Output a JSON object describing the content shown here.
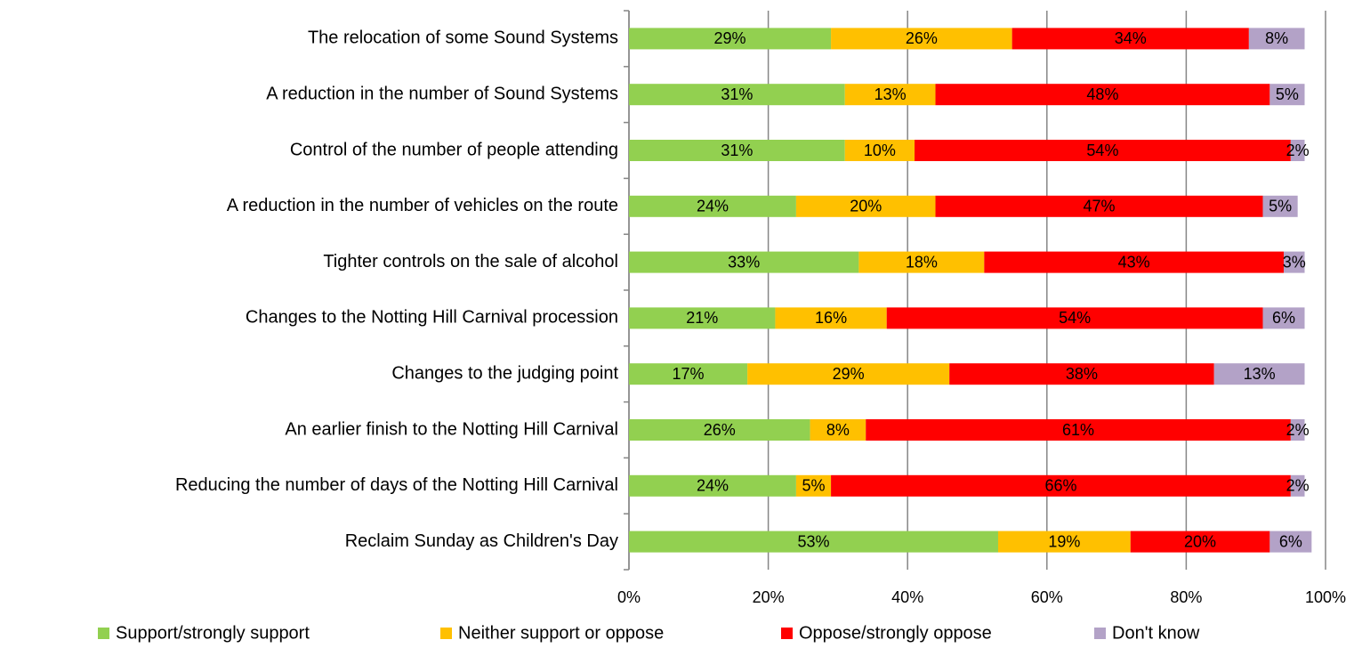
{
  "chart_data": {
    "type": "stacked-barh",
    "categories": [
      "The relocation of some Sound Systems",
      "A reduction in the number of Sound Systems",
      "Control of the number of people attending",
      "A reduction in the number of vehicles on the route",
      "Tighter controls on the sale of alcohol",
      "Changes to the Notting Hill Carnival procession",
      "Changes to the judging point",
      "An earlier finish to the Notting Hill Carnival",
      "Reducing the number of days of the Notting Hill Carnival",
      "Reclaim Sunday as Children's Day"
    ],
    "series": [
      {
        "name": "Support/strongly support",
        "color": "#92d050",
        "values": [
          29,
          31,
          31,
          24,
          33,
          21,
          17,
          26,
          24,
          53
        ],
        "value_labels": [
          "29%",
          "31%",
          "31%",
          "24%",
          "33%",
          "21%",
          "17%",
          "26%",
          "24%",
          "53%"
        ]
      },
      {
        "name": "Neither support or oppose",
        "color": "#ffc000",
        "values": [
          26,
          13,
          10,
          20,
          18,
          16,
          29,
          8,
          5,
          19
        ],
        "value_labels": [
          "26%",
          "13%",
          "10%",
          "20%",
          "18%",
          "16%",
          "29%",
          "8%",
          "5%",
          "19%"
        ]
      },
      {
        "name": "Oppose/strongly oppose",
        "color": "#ff0000",
        "values": [
          34,
          48,
          54,
          47,
          43,
          54,
          38,
          61,
          66,
          20
        ],
        "value_labels": [
          "34%",
          "48%",
          "54%",
          "47%",
          "43%",
          "54%",
          "38%",
          "61%",
          "66%",
          "20%"
        ]
      },
      {
        "name": "Don't know",
        "color": "#b3a2c7",
        "values": [
          8,
          5,
          2,
          5,
          3,
          6,
          13,
          2,
          2,
          6
        ],
        "value_labels": [
          "8%",
          "5%",
          "2%",
          "5%",
          "3%",
          "6%",
          "13%",
          "2%",
          "2%",
          "6%"
        ]
      }
    ],
    "xlim": [
      0,
      100
    ],
    "xticks": [
      {
        "value": 0,
        "label": "0%"
      },
      {
        "value": 20,
        "label": "20%"
      },
      {
        "value": 40,
        "label": "40%"
      },
      {
        "value": 60,
        "label": "60%"
      },
      {
        "value": 80,
        "label": "80%"
      },
      {
        "value": 100,
        "label": "100%"
      }
    ],
    "grid": true,
    "legend": "bottom"
  }
}
